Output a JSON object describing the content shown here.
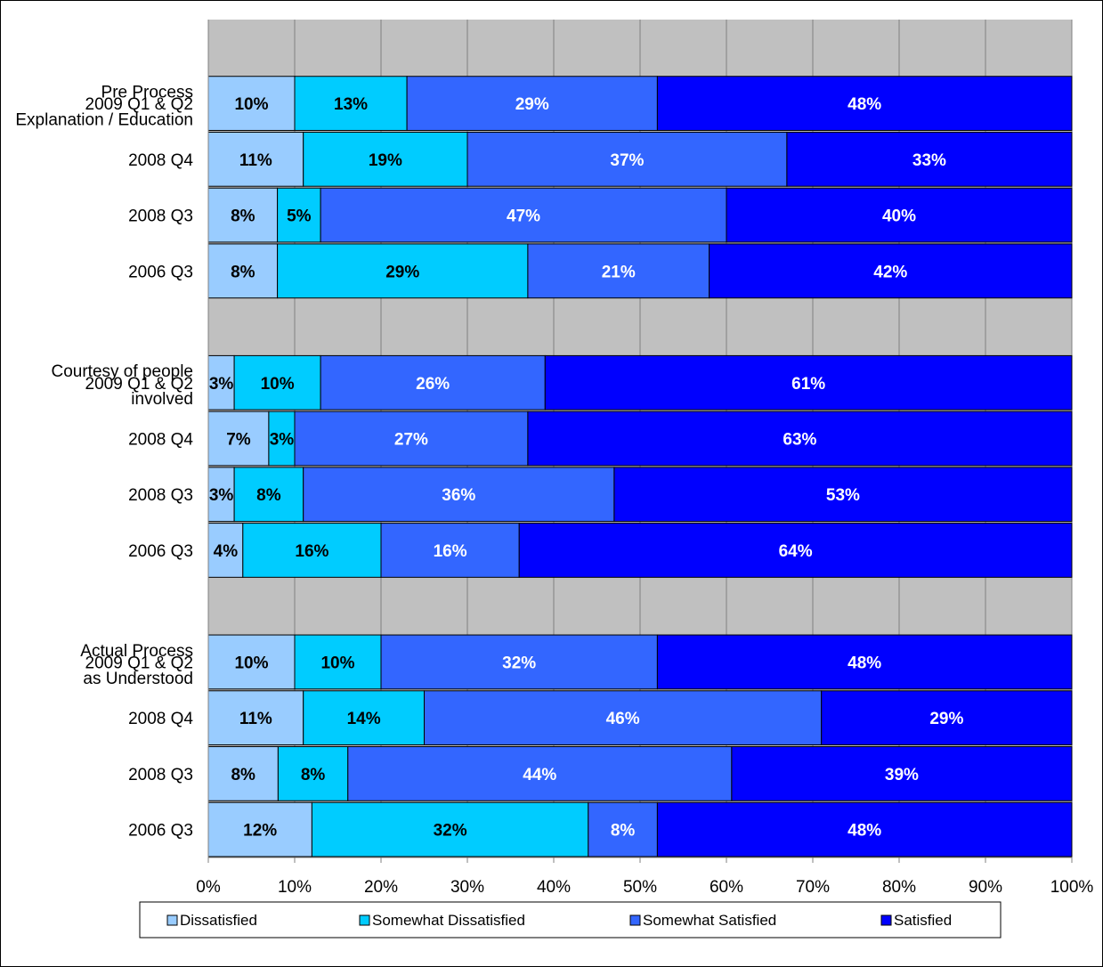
{
  "chart_data": {
    "type": "bar",
    "orientation": "horizontal",
    "stacked": true,
    "percent_axis": true,
    "xlim": [
      0,
      100
    ],
    "x_ticks": [
      "0%",
      "10%",
      "20%",
      "30%",
      "40%",
      "50%",
      "60%",
      "70%",
      "80%",
      "90%",
      "100%"
    ],
    "grid": true,
    "legend_position": "bottom",
    "colors": {
      "plot_background": "#C0C0C0",
      "gridlines": "#808080",
      "Dissatisfied": "#99CCFF",
      "Somewhat Dissatisfied": "#00CCFF",
      "Somewhat Satisfied": "#3366FF",
      "Satisfied": "#0000FF"
    },
    "series_names": [
      "Dissatisfied",
      "Somewhat Dissatisfied",
      "Somewhat Satisfied",
      "Satisfied"
    ],
    "groups": [
      {
        "name_lines": [
          "Pre Process",
          "Explanation / Education"
        ],
        "rows": [
          {
            "label": "2009 Q1 & Q2",
            "values": [
              10,
              13,
              29,
              48
            ]
          },
          {
            "label": "2008 Q4",
            "values": [
              11,
              19,
              37,
              33
            ]
          },
          {
            "label": "2008 Q3",
            "values": [
              8,
              5,
              47,
              40
            ]
          },
          {
            "label": "2006 Q3",
            "values": [
              8,
              29,
              21,
              42
            ]
          }
        ]
      },
      {
        "name_lines": [
          "Courtesy of people",
          "involved"
        ],
        "rows": [
          {
            "label": "2009 Q1 & Q2",
            "values": [
              3,
              10,
              26,
              61
            ]
          },
          {
            "label": "2008 Q4",
            "values": [
              7,
              3,
              27,
              63
            ]
          },
          {
            "label": "2008 Q3",
            "values": [
              3,
              8,
              36,
              53
            ]
          },
          {
            "label": "2006 Q3",
            "values": [
              4,
              16,
              16,
              64
            ]
          }
        ]
      },
      {
        "name_lines": [
          "Actual Process",
          "as Understood"
        ],
        "rows": [
          {
            "label": "2009 Q1 & Q2",
            "values": [
              10,
              10,
              32,
              48
            ]
          },
          {
            "label": "2008 Q4",
            "values": [
              11,
              14,
              46,
              29
            ]
          },
          {
            "label": "2008 Q3",
            "values": [
              8,
              8,
              44,
              39
            ]
          },
          {
            "label": "2006 Q3",
            "values": [
              12,
              32,
              8,
              48
            ]
          }
        ]
      }
    ]
  }
}
